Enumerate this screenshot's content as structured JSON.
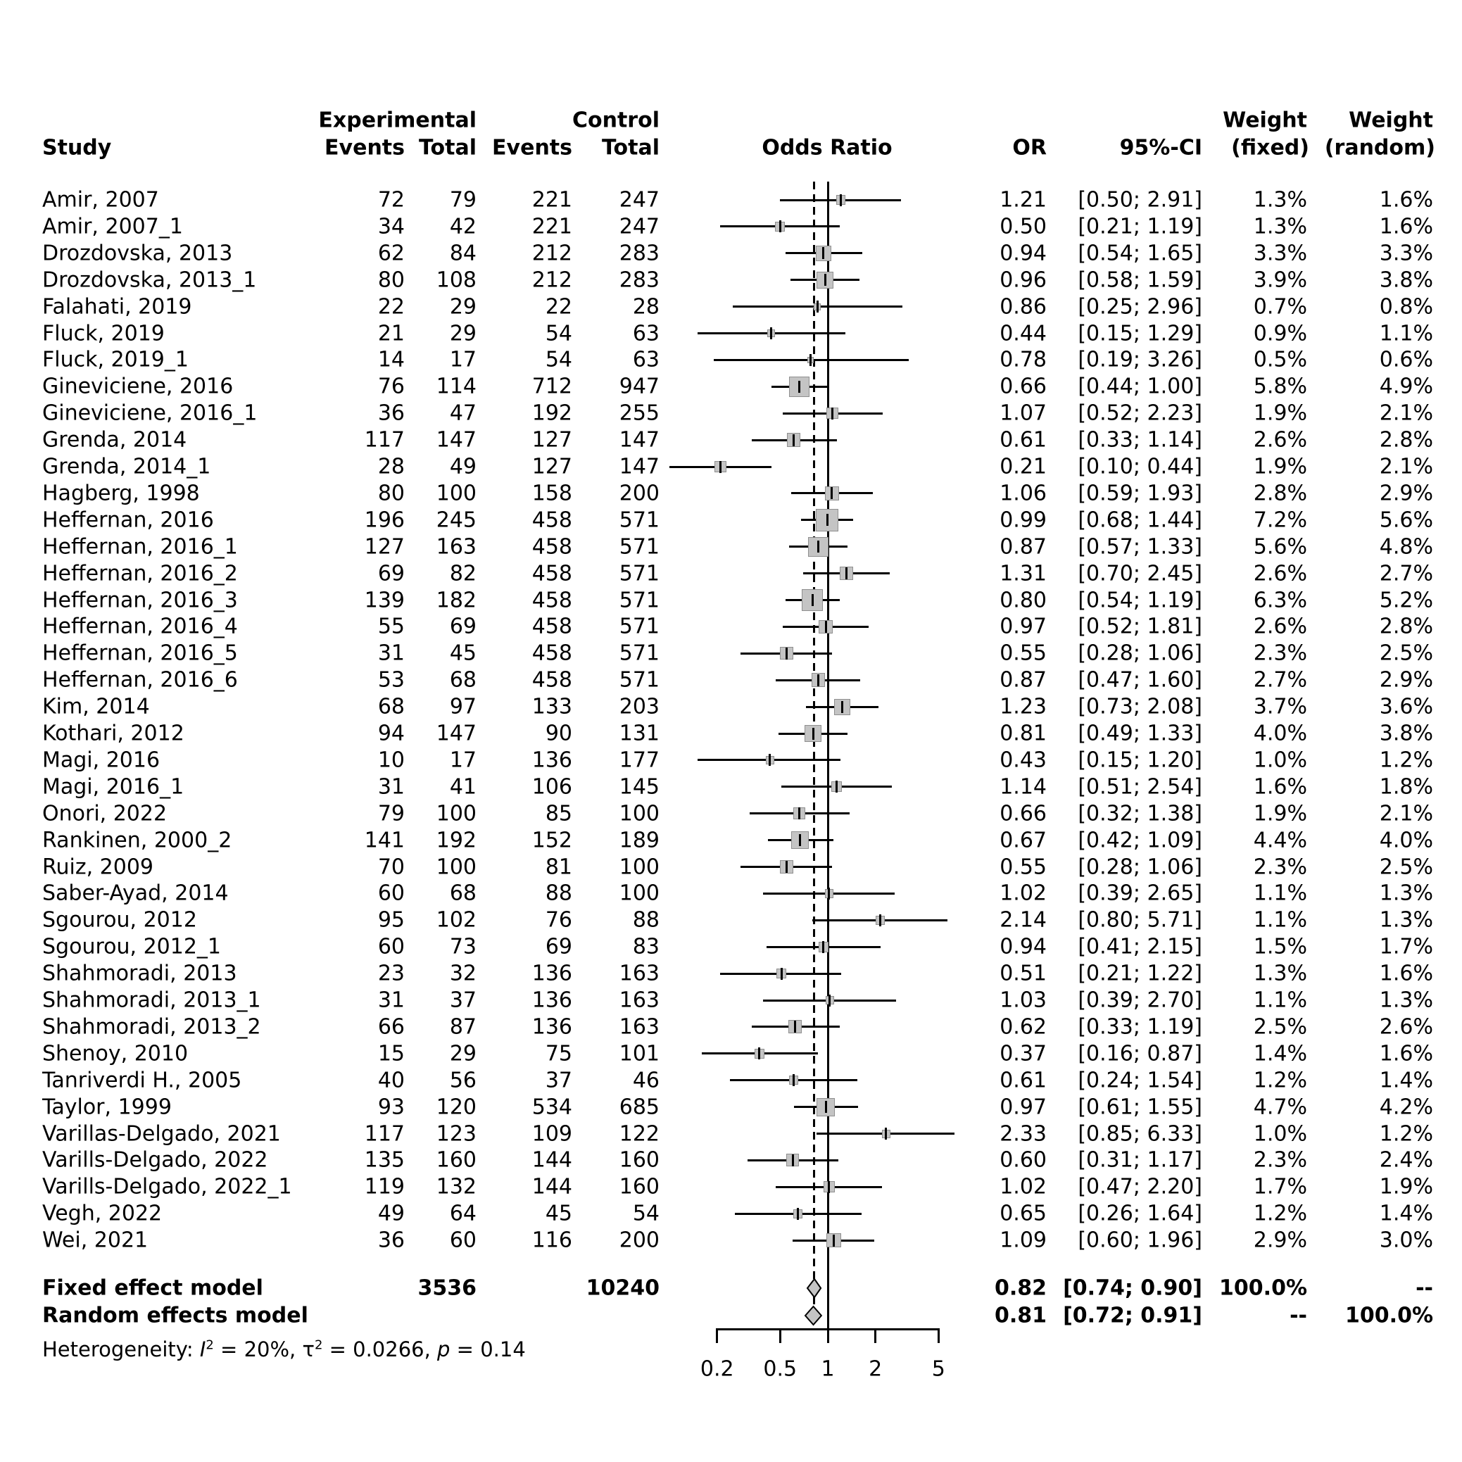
{
  "header": {
    "study": "Study",
    "experimental": "Experimental",
    "control": "Control",
    "events": "Events",
    "total": "Total",
    "odds_ratio": "Odds Ratio",
    "or": "OR",
    "ci": "95%-CI",
    "weight": "Weight",
    "weight_fixed_sub": "(fixed)",
    "weight_random_sub": "(random)"
  },
  "chart_data": {
    "type": "forest",
    "effect_measure": "Odds Ratio",
    "log_scale": true,
    "axis": {
      "ticks": [
        "0.2",
        "0.5",
        "1",
        "2",
        "5"
      ]
    },
    "ref_line": 1,
    "dashed_line": 0.82,
    "columns": [
      "study",
      "exp_events",
      "exp_total",
      "ctrl_events",
      "ctrl_total",
      "or",
      "ci_low",
      "ci_high",
      "weight_fixed",
      "weight_random"
    ],
    "studies": [
      [
        "Amir, 2007",
        72,
        79,
        221,
        247,
        "1.21",
        "0.50",
        "2.91",
        "1.3%",
        "1.6%"
      ],
      [
        "Amir, 2007_1",
        34,
        42,
        221,
        247,
        "0.50",
        "0.21",
        "1.19",
        "1.3%",
        "1.6%"
      ],
      [
        "Drozdovska, 2013",
        62,
        84,
        212,
        283,
        "0.94",
        "0.54",
        "1.65",
        "3.3%",
        "3.3%"
      ],
      [
        "Drozdovska, 2013_1",
        80,
        108,
        212,
        283,
        "0.96",
        "0.58",
        "1.59",
        "3.9%",
        "3.8%"
      ],
      [
        "Falahati, 2019",
        22,
        29,
        22,
        28,
        "0.86",
        "0.25",
        "2.96",
        "0.7%",
        "0.8%"
      ],
      [
        "Fluck, 2019",
        21,
        29,
        54,
        63,
        "0.44",
        "0.15",
        "1.29",
        "0.9%",
        "1.1%"
      ],
      [
        "Fluck, 2019_1",
        14,
        17,
        54,
        63,
        "0.78",
        "0.19",
        "3.26",
        "0.5%",
        "0.6%"
      ],
      [
        "Gineviciene, 2016",
        76,
        114,
        712,
        947,
        "0.66",
        "0.44",
        "1.00",
        "5.8%",
        "4.9%"
      ],
      [
        "Gineviciene, 2016_1",
        36,
        47,
        192,
        255,
        "1.07",
        "0.52",
        "2.23",
        "1.9%",
        "2.1%"
      ],
      [
        "Grenda, 2014",
        117,
        147,
        127,
        147,
        "0.61",
        "0.33",
        "1.14",
        "2.6%",
        "2.8%"
      ],
      [
        "Grenda, 2014_1",
        28,
        49,
        127,
        147,
        "0.21",
        "0.10",
        "0.44",
        "1.9%",
        "2.1%"
      ],
      [
        "Hagberg, 1998",
        80,
        100,
        158,
        200,
        "1.06",
        "0.59",
        "1.93",
        "2.8%",
        "2.9%"
      ],
      [
        "Heffernan, 2016",
        196,
        245,
        458,
        571,
        "0.99",
        "0.68",
        "1.44",
        "7.2%",
        "5.6%"
      ],
      [
        "Heffernan, 2016_1",
        127,
        163,
        458,
        571,
        "0.87",
        "0.57",
        "1.33",
        "5.6%",
        "4.8%"
      ],
      [
        "Heffernan, 2016_2",
        69,
        82,
        458,
        571,
        "1.31",
        "0.70",
        "2.45",
        "2.6%",
        "2.7%"
      ],
      [
        "Heffernan, 2016_3",
        139,
        182,
        458,
        571,
        "0.80",
        "0.54",
        "1.19",
        "6.3%",
        "5.2%"
      ],
      [
        "Heffernan, 2016_4",
        55,
        69,
        458,
        571,
        "0.97",
        "0.52",
        "1.81",
        "2.6%",
        "2.8%"
      ],
      [
        "Heffernan, 2016_5",
        31,
        45,
        458,
        571,
        "0.55",
        "0.28",
        "1.06",
        "2.3%",
        "2.5%"
      ],
      [
        "Heffernan, 2016_6",
        53,
        68,
        458,
        571,
        "0.87",
        "0.47",
        "1.60",
        "2.7%",
        "2.9%"
      ],
      [
        "Kim, 2014",
        68,
        97,
        133,
        203,
        "1.23",
        "0.73",
        "2.08",
        "3.7%",
        "3.6%"
      ],
      [
        "Kothari, 2012",
        94,
        147,
        90,
        131,
        "0.81",
        "0.49",
        "1.33",
        "4.0%",
        "3.8%"
      ],
      [
        "Magi, 2016",
        10,
        17,
        136,
        177,
        "0.43",
        "0.15",
        "1.20",
        "1.0%",
        "1.2%"
      ],
      [
        "Magi, 2016_1",
        31,
        41,
        106,
        145,
        "1.14",
        "0.51",
        "2.54",
        "1.6%",
        "1.8%"
      ],
      [
        "Onori, 2022",
        79,
        100,
        85,
        100,
        "0.66",
        "0.32",
        "1.38",
        "1.9%",
        "2.1%"
      ],
      [
        "Rankinen, 2000_2",
        141,
        192,
        152,
        189,
        "0.67",
        "0.42",
        "1.09",
        "4.4%",
        "4.0%"
      ],
      [
        "Ruiz, 2009",
        70,
        100,
        81,
        100,
        "0.55",
        "0.28",
        "1.06",
        "2.3%",
        "2.5%"
      ],
      [
        "Saber-Ayad, 2014",
        60,
        68,
        88,
        100,
        "1.02",
        "0.39",
        "2.65",
        "1.1%",
        "1.3%"
      ],
      [
        "Sgourou, 2012",
        95,
        102,
        76,
        88,
        "2.14",
        "0.80",
        "5.71",
        "1.1%",
        "1.3%"
      ],
      [
        "Sgourou, 2012_1",
        60,
        73,
        69,
        83,
        "0.94",
        "0.41",
        "2.15",
        "1.5%",
        "1.7%"
      ],
      [
        "Shahmoradi, 2013",
        23,
        32,
        136,
        163,
        "0.51",
        "0.21",
        "1.22",
        "1.3%",
        "1.6%"
      ],
      [
        "Shahmoradi, 2013_1",
        31,
        37,
        136,
        163,
        "1.03",
        "0.39",
        "2.70",
        "1.1%",
        "1.3%"
      ],
      [
        "Shahmoradi, 2013_2",
        66,
        87,
        136,
        163,
        "0.62",
        "0.33",
        "1.19",
        "2.5%",
        "2.6%"
      ],
      [
        "Shenoy, 2010",
        15,
        29,
        75,
        101,
        "0.37",
        "0.16",
        "0.87",
        "1.4%",
        "1.6%"
      ],
      [
        "Tanriverdi H., 2005",
        40,
        56,
        37,
        46,
        "0.61",
        "0.24",
        "1.54",
        "1.2%",
        "1.4%"
      ],
      [
        "Taylor, 1999",
        93,
        120,
        534,
        685,
        "0.97",
        "0.61",
        "1.55",
        "4.7%",
        "4.2%"
      ],
      [
        "Varillas-Delgado, 2021",
        117,
        123,
        109,
        122,
        "2.33",
        "0.85",
        "6.33",
        "1.0%",
        "1.2%"
      ],
      [
        "Varills-Delgado, 2022",
        135,
        160,
        144,
        160,
        "0.60",
        "0.31",
        "1.17",
        "2.3%",
        "2.4%"
      ],
      [
        "Varills-Delgado, 2022_1",
        119,
        132,
        144,
        160,
        "1.02",
        "0.47",
        "2.20",
        "1.7%",
        "1.9%"
      ],
      [
        "Vegh, 2022",
        49,
        64,
        45,
        54,
        "0.65",
        "0.26",
        "1.64",
        "1.2%",
        "1.4%"
      ],
      [
        "Wei, 2021",
        36,
        60,
        116,
        200,
        "1.09",
        "0.60",
        "1.96",
        "2.9%",
        "3.0%"
      ]
    ],
    "summary": {
      "fixed": {
        "label": "Fixed effect model",
        "exp_total": "3536",
        "ctrl_total": "10240",
        "or": "0.82",
        "ci": "[0.74; 0.90]",
        "est": 0.82,
        "lo": 0.74,
        "hi": 0.9,
        "weight_fixed": "100.0%",
        "weight_random": "--"
      },
      "random": {
        "label": "Random effects model",
        "or": "0.81",
        "ci": "[0.72; 0.91]",
        "est": 0.81,
        "lo": 0.72,
        "hi": 0.91,
        "weight_fixed": "--",
        "weight_random": "100.0%"
      }
    },
    "heterogeneity": {
      "prefix": "Heterogeneity: ",
      "i_symbol": "I",
      "sup": "2",
      "i_text": " = 20%, ",
      "tau_symbol": "τ",
      "tau_text": " = 0.0266, ",
      "p_symbol": "p",
      "p_text": " = 0.14"
    }
  }
}
